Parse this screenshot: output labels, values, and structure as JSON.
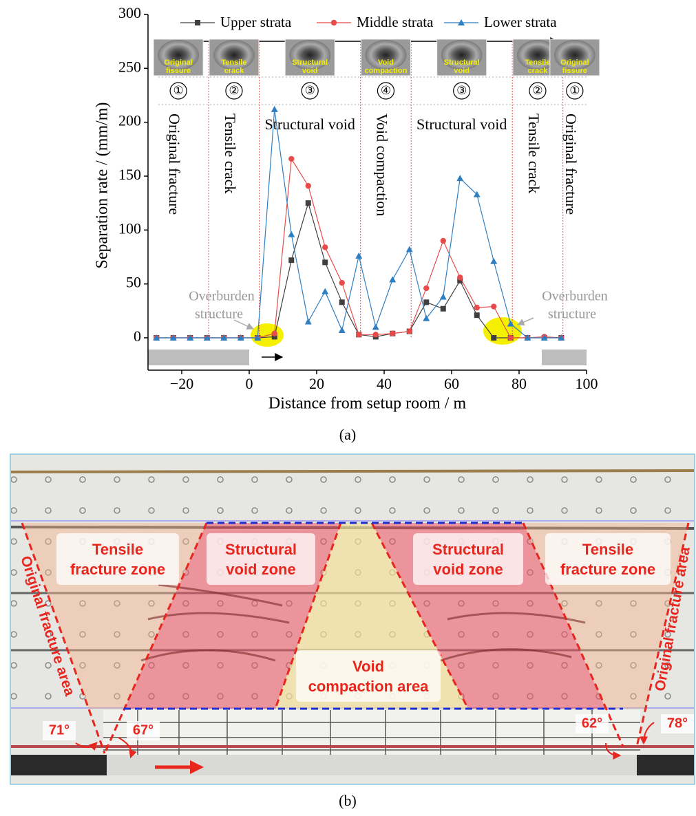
{
  "chart_data": {
    "type": "line",
    "x_label": "Distance from setup room / m",
    "y_label": "Separation rate / (mm/m)",
    "x": [
      -27.5,
      -22.5,
      -17.5,
      -12.5,
      -7.5,
      -2.5,
      2.5,
      7.5,
      12.5,
      17.5,
      22.5,
      27.5,
      32.5,
      37.5,
      42.5,
      47.5,
      52.5,
      57.5,
      62.5,
      67.5,
      72.5,
      77.5,
      82.5,
      87.5,
      92.5
    ],
    "xlim": [
      -30,
      100
    ],
    "xticks": [
      {
        "value": -20,
        "label": "−20"
      },
      0,
      20,
      40,
      60,
      80,
      100
    ],
    "ylim": [
      -30,
      300
    ],
    "yticks": [
      0,
      50,
      100,
      150,
      200,
      250,
      300
    ],
    "series": [
      {
        "name": "Upper strata",
        "color": "#404040",
        "marker": "square",
        "values": [
          0,
          0,
          0,
          0,
          0,
          0,
          0,
          1,
          72,
          125,
          70,
          33,
          3,
          1,
          4,
          6,
          33,
          27,
          53,
          21,
          0,
          0,
          0,
          0,
          0
        ]
      },
      {
        "name": "Middle strata",
        "color": "#e84b4b",
        "marker": "circle",
        "values": [
          0,
          0,
          0,
          0,
          0,
          0,
          0,
          4,
          166,
          141,
          84,
          51,
          3,
          3,
          4,
          6,
          46,
          90,
          56,
          28,
          29,
          0,
          0,
          1,
          0
        ]
      },
      {
        "name": "Lower strata",
        "color": "#2f7ec1",
        "marker": "triangle",
        "values": [
          0,
          0,
          0,
          0,
          0,
          0,
          0,
          212,
          96,
          15,
          43,
          7,
          76,
          10,
          54,
          82,
          18,
          38,
          148,
          133,
          71,
          13,
          0,
          0,
          0
        ]
      }
    ],
    "zone_boundaries": [
      -12,
      3,
      33,
      48,
      78,
      93
    ],
    "zones": [
      {
        "number": "①",
        "label": "Original fracture",
        "vertical": true,
        "caption": [
          "Original",
          "fissure"
        ]
      },
      {
        "number": "②",
        "label": "Tensile crack",
        "vertical": true,
        "caption": [
          "Tensile",
          "crack"
        ]
      },
      {
        "number": "③",
        "label": "Structural void",
        "vertical": false,
        "caption": [
          "Structural",
          "void"
        ]
      },
      {
        "number": "④",
        "label": "Void compaction",
        "vertical": true,
        "caption": [
          "Void",
          "compaction"
        ]
      },
      {
        "number": "③",
        "label": "Structural void",
        "vertical": false,
        "caption": [
          "Structural",
          "void"
        ]
      },
      {
        "number": "②",
        "label": "Tensile crack",
        "vertical": true,
        "caption": [
          "Tensile",
          "crack"
        ]
      },
      {
        "number": "①",
        "label": "Original fracture",
        "vertical": true,
        "caption": [
          "Original",
          "fissure"
        ]
      }
    ],
    "annotations": [
      [
        "Overburden",
        "structure"
      ],
      [
        "Overburden",
        "structure"
      ]
    ]
  },
  "panel_labels": [
    "(a)",
    "(b)"
  ],
  "model": {
    "zones": [
      [
        "Tensile",
        "fracture zone"
      ],
      [
        "Structural",
        "void zone"
      ],
      [
        "Void",
        "compaction area"
      ],
      [
        "Structural",
        "void zone"
      ],
      [
        "Tensile",
        "fracture zone"
      ]
    ],
    "boundary_labels": [
      "Original fracture area",
      "Original fracture area"
    ],
    "angles": [
      "71°",
      "67°",
      "62°",
      "78°"
    ]
  }
}
